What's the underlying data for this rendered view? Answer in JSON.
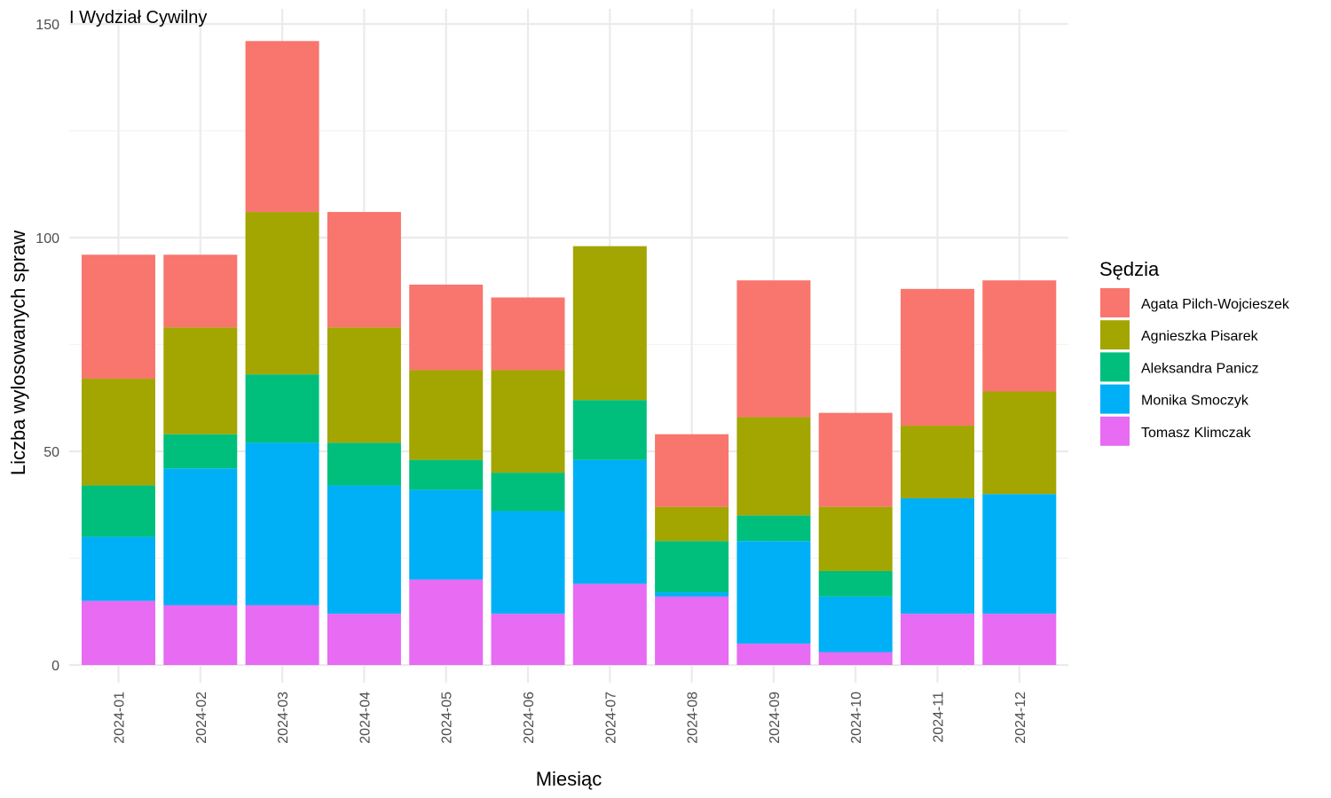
{
  "chart_data": {
    "type": "bar",
    "stacked": true,
    "title": "I Wydział Cywilny",
    "xlabel": "Miesiąc",
    "ylabel": "Liczba wylosowanych spraw",
    "ylim": [
      0,
      150
    ],
    "yticks": [
      0,
      50,
      100,
      150
    ],
    "grid": true,
    "legend_title": "Sędzia",
    "legend_position": "right",
    "categories": [
      "2024-01",
      "2024-02",
      "2024-03",
      "2024-04",
      "2024-05",
      "2024-06",
      "2024-07",
      "2024-08",
      "2024-09",
      "2024-10",
      "2024-11",
      "2024-12"
    ],
    "series": [
      {
        "name": "Tomasz Klimczak",
        "color": "#E76BF3",
        "values": [
          15,
          14,
          14,
          12,
          20,
          12,
          19,
          16,
          5,
          3,
          12,
          12
        ]
      },
      {
        "name": "Monika Smoczyk",
        "color": "#00B0F6",
        "values": [
          15,
          32,
          38,
          30,
          21,
          24,
          29,
          1,
          24,
          13,
          27,
          28
        ]
      },
      {
        "name": "Aleksandra Panicz",
        "color": "#00BF7D",
        "values": [
          12,
          8,
          16,
          10,
          7,
          9,
          14,
          12,
          6,
          6,
          0,
          0
        ]
      },
      {
        "name": "Agnieszka Pisarek",
        "color": "#A3A500",
        "values": [
          25,
          25,
          38,
          27,
          21,
          24,
          36,
          8,
          23,
          15,
          17,
          24
        ]
      },
      {
        "name": "Agata Pilch-Wojcieszek",
        "color": "#F8766D",
        "values": [
          29,
          17,
          40,
          27,
          20,
          17,
          0,
          17,
          32,
          22,
          32,
          26
        ]
      }
    ],
    "legend_order": [
      "Agata Pilch-Wojcieszek",
      "Agnieszka Pisarek",
      "Aleksandra Panicz",
      "Monika Smoczyk",
      "Tomasz Klimczak"
    ]
  }
}
